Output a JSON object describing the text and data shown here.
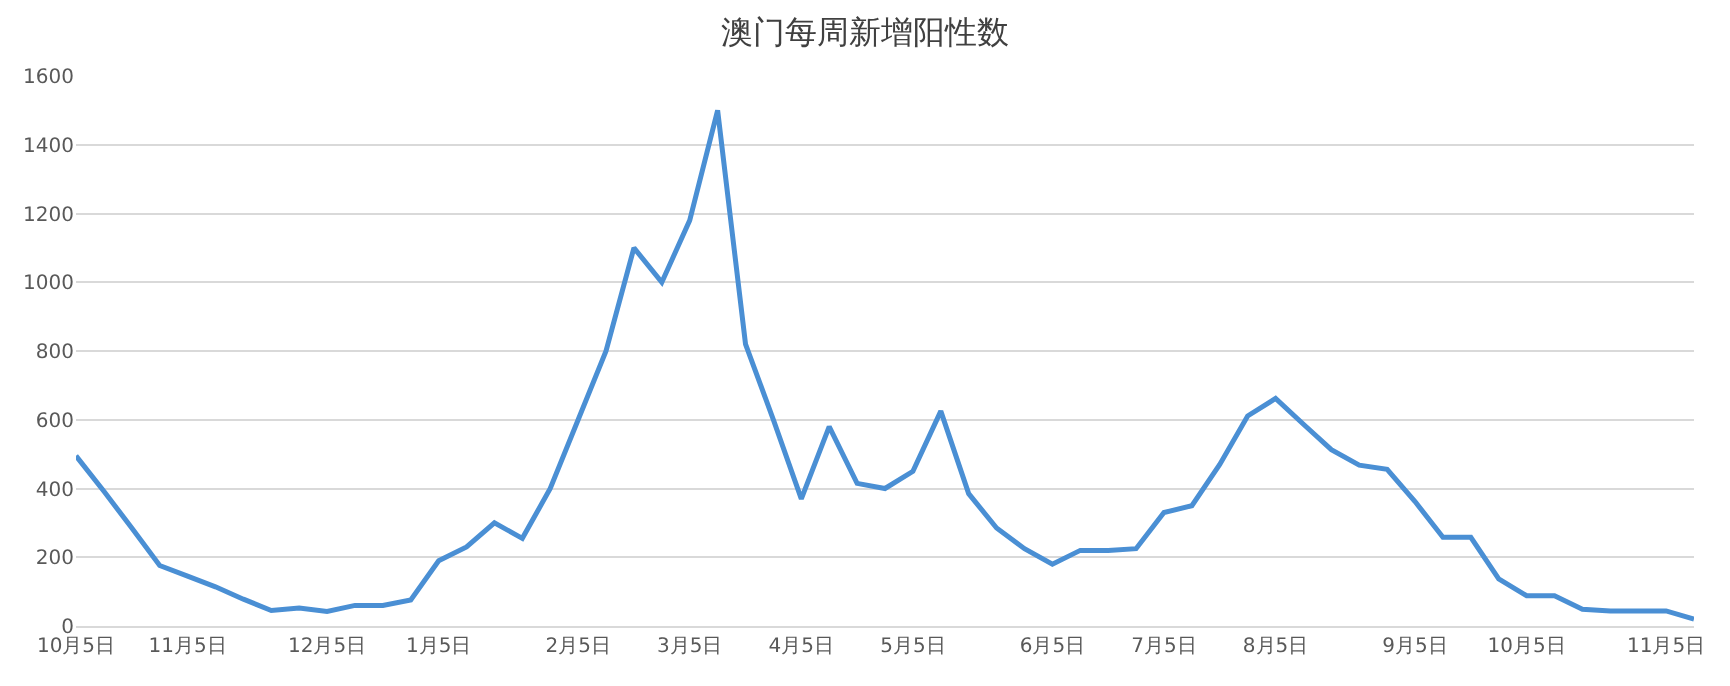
{
  "chart_data": {
    "type": "line",
    "title": "澳门每周新增阳性数",
    "categories": [
      "10月5日",
      null,
      null,
      null,
      "11月5日",
      null,
      null,
      null,
      null,
      "12月5日",
      null,
      null,
      null,
      "1月5日",
      null,
      null,
      null,
      null,
      "2月5日",
      null,
      null,
      null,
      "3月5日",
      null,
      null,
      null,
      "4月5日",
      null,
      null,
      null,
      "5月5日",
      null,
      null,
      null,
      null,
      "6月5日",
      null,
      null,
      null,
      "7月5日",
      null,
      null,
      null,
      "8月5日",
      null,
      null,
      null,
      null,
      "9月5日",
      null,
      null,
      null,
      "10月5日",
      null,
      null,
      null,
      null,
      "11月5日",
      null
    ],
    "series": [
      {
        "color": "#4a8fd4",
        "values": [
          495,
          392,
          285,
          176,
          145,
          114,
          78,
          45,
          52,
          42,
          60,
          60,
          76,
          190,
          230,
          300,
          255,
          400,
          600,
          800,
          1100,
          1000,
          1180,
          1500,
          820,
          600,
          370,
          580,
          415,
          400,
          450,
          625,
          385,
          285,
          225,
          180,
          220,
          220,
          225,
          330,
          350,
          470,
          611,
          662,
          587,
          513,
          468,
          456,
          362,
          258,
          258,
          137,
          88,
          88,
          49,
          44,
          44,
          44,
          20
        ]
      }
    ],
    "ylim": [
      0,
      1600
    ],
    "yticks": [
      0,
      200,
      400,
      600,
      800,
      1000,
      1200,
      1400,
      1600
    ],
    "grid": "y",
    "marker": "none",
    "line_style": "solid"
  }
}
